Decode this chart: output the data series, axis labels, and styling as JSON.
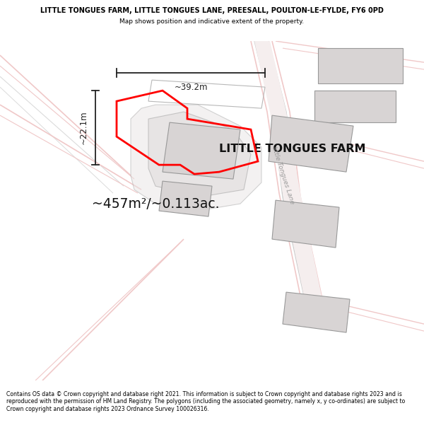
{
  "title_line1": "LITTLE TONGUES FARM, LITTLE TONGUES LANE, PREESALL, POULTON-LE-FYLDE, FY6 0PD",
  "title_line2": "Map shows position and indicative extent of the property.",
  "farm_label": "LITTLE TONGUES FARM",
  "area_label": "~457m²/~0.113ac.",
  "width_label": "~39.2m",
  "height_label": "~22.1m",
  "road_label": "little Tongues Lane",
  "footer_text": "Contains OS data © Crown copyright and database right 2021. This information is subject to Crown copyright and database rights 2023 and is reproduced with the permission of HM Land Registry. The polygons (including the associated geometry, namely x, y co-ordinates) are subject to Crown copyright and database rights 2023 Ordnance Survey 100026316.",
  "bg_color": "#ffffff",
  "map_bg": "#ffffff",
  "plot_outline_color": "#ff0000",
  "dim_line_color": "#222222",
  "road_pink": "#f0c8c8",
  "road_gray": "#b8b8b8",
  "building_fill": "#d8d4d4",
  "building_edge": "#999999",
  "enclosure_edge": "#aaaaaa",
  "enclosure_fill": "#e8e4e4"
}
